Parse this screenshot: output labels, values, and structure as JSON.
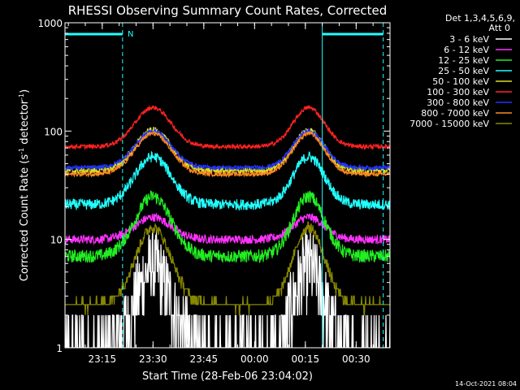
{
  "chart_data": {
    "type": "line",
    "title": "RHESSI Observing Summary Count Rates, Corrected",
    "xlabel": "Start Time (28-Feb-06 23:04:02)",
    "ylabel_prefix": "Corrected Count Rate (s",
    "ylabel_mid": " detector",
    "ylabel_suffix": ")",
    "ylabel_sup": "-1",
    "yscale": "log",
    "ylim": [
      1,
      1000
    ],
    "xlim_minutes": [
      0,
      96
    ],
    "x_ticks": [
      {
        "label": "23:15",
        "minute": 11
      },
      {
        "label": "23:30",
        "minute": 26
      },
      {
        "label": "23:45",
        "minute": 41
      },
      {
        "label": "00:00",
        "minute": 56
      },
      {
        "label": "00:15",
        "minute": 71
      },
      {
        "label": "00:30",
        "minute": 86
      }
    ],
    "y_ticks": [
      {
        "label": "1",
        "value": 1
      },
      {
        "label": "10",
        "value": 10
      },
      {
        "label": "100",
        "value": 100
      },
      {
        "label": "1000",
        "value": 1000
      }
    ],
    "night_marker": "N",
    "vlines_minutes": [
      0,
      17,
      76,
      94
    ],
    "bars": [
      {
        "from_minute": 0,
        "to_minute": 17
      },
      {
        "from_minute": 76,
        "to_minute": 94
      }
    ],
    "legend_header": [
      "Det 1,3,4,5,6,9,",
      "Att 0"
    ],
    "series": [
      {
        "name": "3 - 6 keV",
        "color": "#ffffff",
        "base": 0.9,
        "peak": 5.5,
        "noise": 0.35
      },
      {
        "name": "6 - 12 keV",
        "color": "#ff33ff",
        "base": 10,
        "peak": 16,
        "noise": 0.04
      },
      {
        "name": "12 - 25 keV",
        "color": "#22ee22",
        "base": 7,
        "peak": 25,
        "noise": 0.06
      },
      {
        "name": "25 - 50 keV",
        "color": "#22ffff",
        "base": 21,
        "peak": 58,
        "noise": 0.05
      },
      {
        "name": "50 - 100 keV",
        "color": "#dddd22",
        "base": 43,
        "peak": 102,
        "noise": 0.03
      },
      {
        "name": "100 - 300 keV",
        "color": "#ff2222",
        "base": 72,
        "peak": 165,
        "noise": 0.02
      },
      {
        "name": "300 - 800 keV",
        "color": "#2233ff",
        "base": 46,
        "peak": 100,
        "noise": 0.02
      },
      {
        "name": "800 - 7000 keV",
        "color": "#ff8822",
        "base": 40,
        "peak": 95,
        "noise": 0.02
      },
      {
        "name": "7000 - 15000 keV",
        "color": "#888800",
        "base": 2.5,
        "peak": 13,
        "noise": 0.05
      }
    ],
    "peaks_minutes": [
      26,
      72
    ],
    "footer_date": "14-Oct-2021 08:04"
  }
}
